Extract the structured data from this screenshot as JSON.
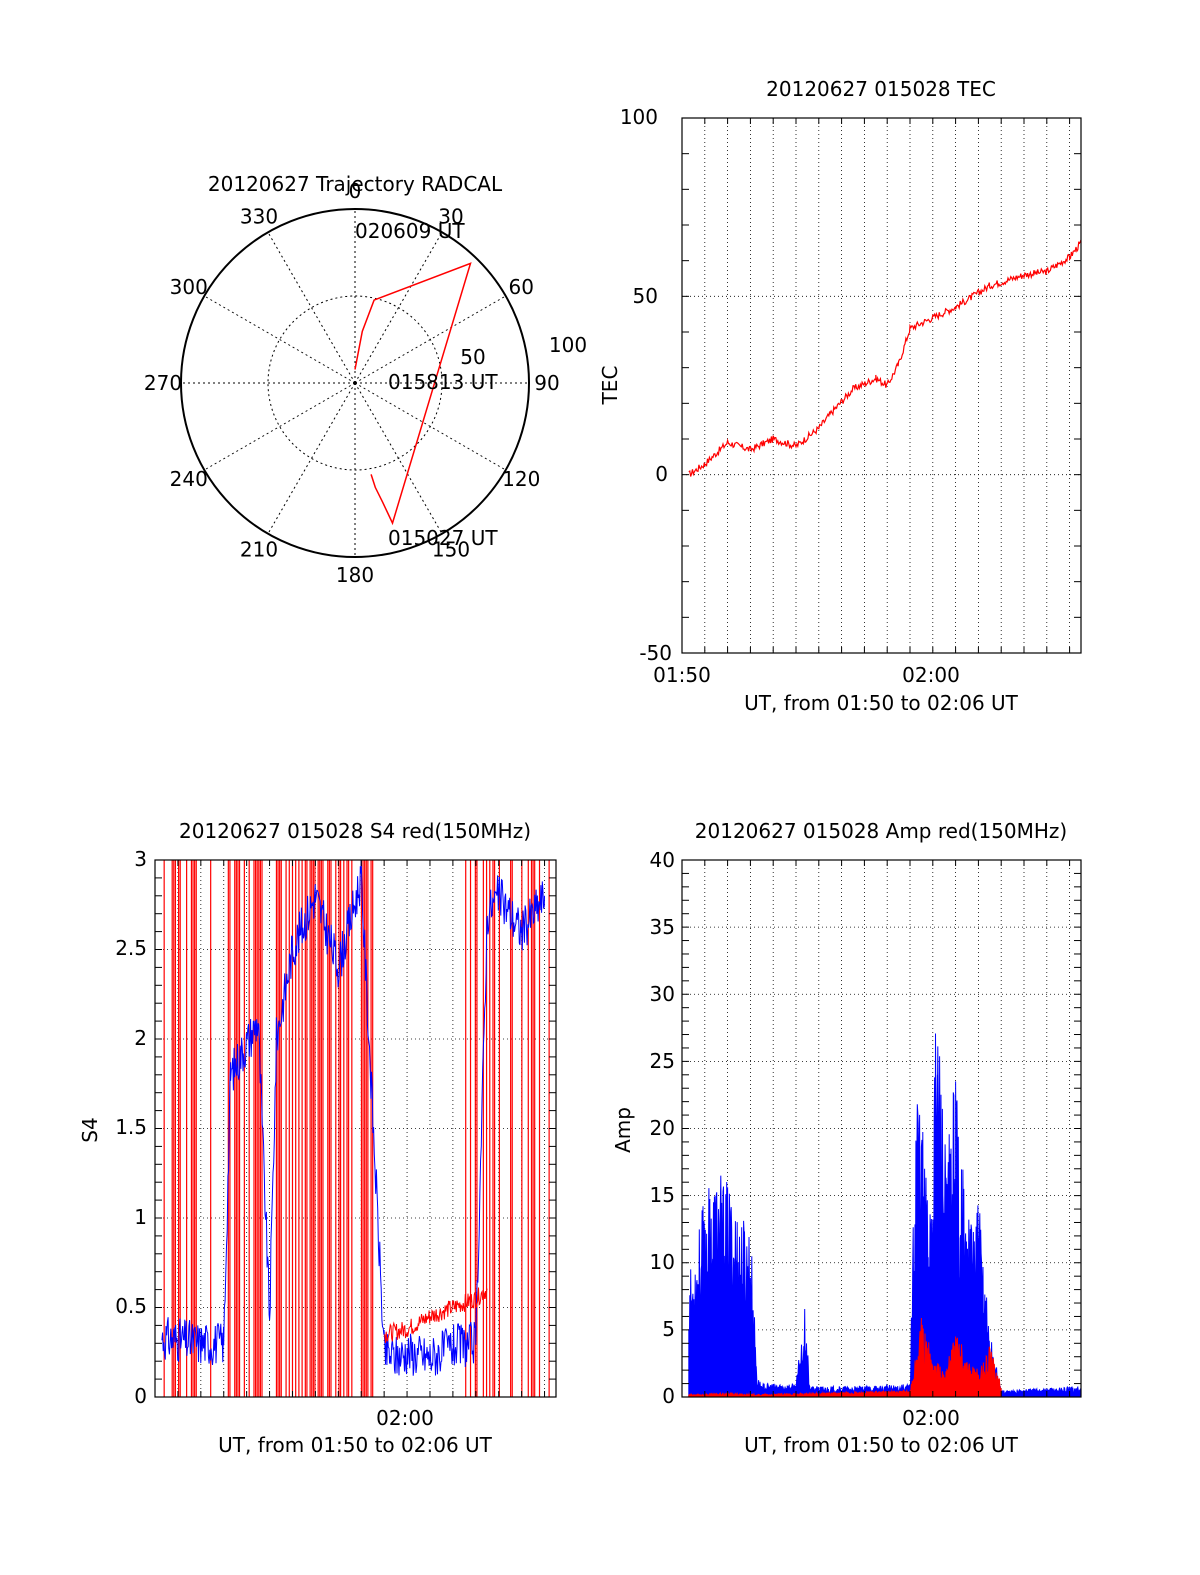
{
  "colors": {
    "red": "#ff0000",
    "blue": "#0000ff",
    "axis": "#000000",
    "grid": "#000000"
  },
  "chart_data": [
    {
      "id": "polar",
      "type": "scatter",
      "projection": "polar",
      "title": "20120627 Trajectory RADCAL",
      "angle_labels": [
        "0",
        "30",
        "60",
        "90",
        "120",
        "150",
        "180",
        "210",
        "240",
        "270",
        "300",
        "330"
      ],
      "radius_labels": [
        "50",
        "100"
      ],
      "r_max": 100,
      "annotations": [
        "020609 UT",
        "015813 UT",
        "015027 UT"
      ],
      "trajectory": {
        "color": "red",
        "points": [
          {
            "az": 0,
            "el": 83
          },
          {
            "az": 8,
            "el": 63
          },
          {
            "az": 13,
            "el": 46
          },
          {
            "az": 44,
            "el": 4
          },
          {
            "az": 165,
            "el": 15
          },
          {
            "az": 167,
            "el": 27
          },
          {
            "az": 169,
            "el": 35
          },
          {
            "az": 170,
            "el": 42
          }
        ]
      }
    },
    {
      "id": "tec",
      "type": "line",
      "title": "20120627 015028 TEC",
      "xlabel": "UT, from 01:50 to 02:06 UT",
      "ylabel": "TEC",
      "x_tick_labels": [
        {
          "t": 0,
          "label": "01:50"
        },
        {
          "t": 10,
          "label": "02:00"
        }
      ],
      "y_tick_labels": [
        "-50",
        "0",
        "50",
        "100"
      ],
      "xlim": [
        0,
        17.5
      ],
      "ylim": [
        -50,
        100
      ],
      "series": [
        {
          "color": "red",
          "x": [
            0.3,
            1.0,
            2.0,
            3.0,
            4.0,
            5.0,
            6.0,
            6.5,
            7.5,
            8.5,
            9.0,
            9.5,
            10.0,
            12.0,
            13.5,
            15.0,
            16.0,
            17.0,
            17.5
          ],
          "y": [
            0,
            3,
            9,
            7,
            10,
            8,
            13,
            17,
            24,
            27,
            25,
            31,
            41,
            47,
            53,
            56,
            57,
            61,
            65
          ]
        }
      ]
    },
    {
      "id": "s4",
      "type": "line",
      "title": "20120627 015028 S4 red(150MHz)",
      "xlabel": "UT, from 01:50 to 02:06 UT",
      "ylabel": "S4",
      "x_tick_labels": [
        {
          "t": 10,
          "label": "02:00"
        }
      ],
      "y_tick_labels": [
        "0",
        "0.5",
        "1",
        "1.5",
        "2",
        "2.5",
        "3"
      ],
      "xlim": [
        0,
        17.5
      ],
      "ylim": [
        0,
        3
      ],
      "series": [
        {
          "color": "blue",
          "x": [
            0.3,
            1.0,
            2.0,
            3.0,
            3.3,
            4.5,
            5.0,
            5.3,
            6.0,
            7.0,
            8.0,
            9.0,
            10.0,
            10.5,
            11.0,
            12.0,
            13.0,
            14.0,
            14.5,
            15.0,
            16.0,
            17.0
          ],
          "y": [
            0.33,
            0.32,
            0.3,
            0.3,
            1.8,
            2.1,
            0.45,
            2.0,
            2.5,
            2.8,
            2.4,
            2.9,
            0.25,
            0.22,
            0.25,
            0.22,
            0.28,
            0.3,
            2.7,
            2.8,
            2.6,
            2.8
          ]
        },
        {
          "color": "red",
          "x": [
            10.0,
            11.0,
            12.0,
            13.0,
            14.0,
            14.5
          ],
          "y": [
            0.35,
            0.38,
            0.45,
            0.5,
            0.55,
            0.6
          ]
        }
      ]
    },
    {
      "id": "amp",
      "type": "line",
      "title": "20120627 015028 Amp red(150MHz)",
      "xlabel": "UT, from 01:50 to 02:06 UT",
      "ylabel": "Amp",
      "x_tick_labels": [
        {
          "t": 10,
          "label": "02:00"
        }
      ],
      "y_tick_labels": [
        "0",
        "5",
        "10",
        "15",
        "20",
        "25",
        "30",
        "35",
        "40"
      ],
      "xlim": [
        0,
        17.5
      ],
      "ylim": [
        0,
        40
      ],
      "series": [
        {
          "color": "blue",
          "x": [
            0.3,
            1.0,
            1.5,
            2.0,
            2.5,
            3.0,
            3.3,
            3.5,
            5.0,
            5.4,
            5.6,
            6.0,
            8.0,
            10.0,
            10.3,
            10.8,
            11.2,
            11.6,
            12.0,
            12.5,
            13.0,
            13.5,
            14.0,
            15.0,
            16.0,
            17.5
          ],
          "y": [
            9,
            15,
            17,
            16,
            14,
            13,
            1.5,
            1.0,
            1.0,
            7,
            0.8,
            0.8,
            0.8,
            1.0,
            27,
            15,
            31,
            17,
            26,
            13,
            15,
            5,
            0.5,
            0.6,
            0.7,
            0.8
          ]
        },
        {
          "color": "red",
          "x": [
            0.3,
            2.0,
            3.3,
            10.0,
            10.5,
            11.0,
            11.5,
            12.0,
            12.5,
            13.0,
            13.5,
            14.0
          ],
          "y": [
            0.2,
            0.3,
            0.2,
            0.5,
            6,
            3,
            2,
            5,
            3,
            2,
            4,
            1
          ]
        }
      ]
    }
  ]
}
